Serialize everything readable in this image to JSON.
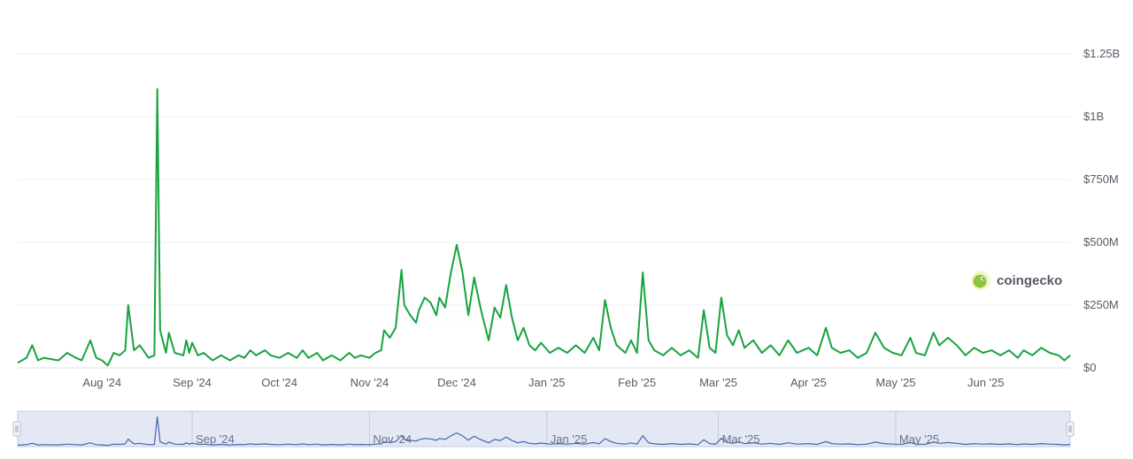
{
  "brand": {
    "name": "coingecko",
    "icon": "gecko-logo-icon"
  },
  "colors": {
    "line": "#18a33f",
    "area_top": "#d6f0dc",
    "grid": "#eeeff2",
    "navigator_fill": "#d7def0",
    "navigator_line": "#4566b0",
    "navigator_handle": "#c8cfdc",
    "axis_text": "#555b66"
  },
  "chart_data": {
    "type": "area",
    "title": "",
    "xlabel": "",
    "ylabel": "",
    "y_unit": "USD",
    "ylim": [
      0,
      1250000000
    ],
    "xlim": [
      "2024-07-03",
      "2025-06-30"
    ],
    "y_ticks": [
      {
        "value": 0,
        "label": "$0"
      },
      {
        "value": 250000000,
        "label": "$250M"
      },
      {
        "value": 500000000,
        "label": "$500M"
      },
      {
        "value": 750000000,
        "label": "$750M"
      },
      {
        "value": 1000000000,
        "label": "$1B"
      },
      {
        "value": 1250000000,
        "label": "$1.25B"
      }
    ],
    "x_ticks": [
      {
        "date": "2024-08-01",
        "label": "Aug '24"
      },
      {
        "date": "2024-09-01",
        "label": "Sep '24"
      },
      {
        "date": "2024-10-01",
        "label": "Oct '24"
      },
      {
        "date": "2024-11-01",
        "label": "Nov '24"
      },
      {
        "date": "2024-12-01",
        "label": "Dec '24"
      },
      {
        "date": "2025-01-01",
        "label": "Jan '25"
      },
      {
        "date": "2025-02-01",
        "label": "Feb '25"
      },
      {
        "date": "2025-03-01",
        "label": "Mar '25"
      },
      {
        "date": "2025-04-01",
        "label": "Apr '25"
      },
      {
        "date": "2025-05-01",
        "label": "May '25"
      },
      {
        "date": "2025-06-01",
        "label": "Jun '25"
      }
    ],
    "grid": true,
    "legend": "none",
    "series": [
      {
        "points": [
          [
            "2024-07-03",
            20000000
          ],
          [
            "2024-07-06",
            40000000
          ],
          [
            "2024-07-08",
            90000000
          ],
          [
            "2024-07-10",
            30000000
          ],
          [
            "2024-07-12",
            40000000
          ],
          [
            "2024-07-17",
            30000000
          ],
          [
            "2024-07-20",
            60000000
          ],
          [
            "2024-07-23",
            40000000
          ],
          [
            "2024-07-25",
            30000000
          ],
          [
            "2024-07-28",
            110000000
          ],
          [
            "2024-07-30",
            40000000
          ],
          [
            "2024-08-01",
            30000000
          ],
          [
            "2024-08-03",
            10000000
          ],
          [
            "2024-08-05",
            60000000
          ],
          [
            "2024-08-07",
            50000000
          ],
          [
            "2024-08-09",
            70000000
          ],
          [
            "2024-08-10",
            250000000
          ],
          [
            "2024-08-12",
            70000000
          ],
          [
            "2024-08-14",
            90000000
          ],
          [
            "2024-08-17",
            40000000
          ],
          [
            "2024-08-19",
            50000000
          ],
          [
            "2024-08-20",
            1110000000
          ],
          [
            "2024-08-21",
            150000000
          ],
          [
            "2024-08-23",
            60000000
          ],
          [
            "2024-08-24",
            140000000
          ],
          [
            "2024-08-26",
            60000000
          ],
          [
            "2024-08-29",
            50000000
          ],
          [
            "2024-08-30",
            110000000
          ],
          [
            "2024-08-31",
            60000000
          ],
          [
            "2024-09-01",
            100000000
          ],
          [
            "2024-09-03",
            50000000
          ],
          [
            "2024-09-05",
            60000000
          ],
          [
            "2024-09-08",
            30000000
          ],
          [
            "2024-09-11",
            50000000
          ],
          [
            "2024-09-14",
            30000000
          ],
          [
            "2024-09-17",
            50000000
          ],
          [
            "2024-09-19",
            40000000
          ],
          [
            "2024-09-21",
            70000000
          ],
          [
            "2024-09-23",
            50000000
          ],
          [
            "2024-09-26",
            70000000
          ],
          [
            "2024-09-28",
            50000000
          ],
          [
            "2024-10-01",
            40000000
          ],
          [
            "2024-10-04",
            60000000
          ],
          [
            "2024-10-07",
            40000000
          ],
          [
            "2024-10-09",
            70000000
          ],
          [
            "2024-10-11",
            40000000
          ],
          [
            "2024-10-14",
            60000000
          ],
          [
            "2024-10-16",
            30000000
          ],
          [
            "2024-10-19",
            50000000
          ],
          [
            "2024-10-22",
            30000000
          ],
          [
            "2024-10-25",
            60000000
          ],
          [
            "2024-10-27",
            40000000
          ],
          [
            "2024-10-29",
            50000000
          ],
          [
            "2024-11-01",
            40000000
          ],
          [
            "2024-11-03",
            60000000
          ],
          [
            "2024-11-05",
            70000000
          ],
          [
            "2024-11-06",
            150000000
          ],
          [
            "2024-11-08",
            120000000
          ],
          [
            "2024-11-10",
            160000000
          ],
          [
            "2024-11-12",
            390000000
          ],
          [
            "2024-11-13",
            250000000
          ],
          [
            "2024-11-15",
            210000000
          ],
          [
            "2024-11-17",
            180000000
          ],
          [
            "2024-11-18",
            230000000
          ],
          [
            "2024-11-20",
            280000000
          ],
          [
            "2024-11-22",
            260000000
          ],
          [
            "2024-11-24",
            210000000
          ],
          [
            "2024-11-25",
            280000000
          ],
          [
            "2024-11-27",
            240000000
          ],
          [
            "2024-11-29",
            380000000
          ],
          [
            "2024-12-01",
            490000000
          ],
          [
            "2024-12-03",
            380000000
          ],
          [
            "2024-12-05",
            210000000
          ],
          [
            "2024-12-07",
            360000000
          ],
          [
            "2024-12-09",
            250000000
          ],
          [
            "2024-12-10",
            200000000
          ],
          [
            "2024-12-12",
            110000000
          ],
          [
            "2024-12-14",
            240000000
          ],
          [
            "2024-12-16",
            200000000
          ],
          [
            "2024-12-18",
            330000000
          ],
          [
            "2024-12-20",
            200000000
          ],
          [
            "2024-12-22",
            110000000
          ],
          [
            "2024-12-24",
            160000000
          ],
          [
            "2024-12-26",
            90000000
          ],
          [
            "2024-12-28",
            70000000
          ],
          [
            "2024-12-30",
            100000000
          ],
          [
            "2025-01-02",
            60000000
          ],
          [
            "2025-01-05",
            80000000
          ],
          [
            "2025-01-08",
            60000000
          ],
          [
            "2025-01-11",
            90000000
          ],
          [
            "2025-01-14",
            60000000
          ],
          [
            "2025-01-17",
            120000000
          ],
          [
            "2025-01-19",
            70000000
          ],
          [
            "2025-01-21",
            270000000
          ],
          [
            "2025-01-23",
            160000000
          ],
          [
            "2025-01-25",
            90000000
          ],
          [
            "2025-01-28",
            60000000
          ],
          [
            "2025-01-30",
            110000000
          ],
          [
            "2025-02-01",
            60000000
          ],
          [
            "2025-02-03",
            380000000
          ],
          [
            "2025-02-05",
            110000000
          ],
          [
            "2025-02-07",
            70000000
          ],
          [
            "2025-02-10",
            50000000
          ],
          [
            "2025-02-13",
            80000000
          ],
          [
            "2025-02-16",
            50000000
          ],
          [
            "2025-02-19",
            70000000
          ],
          [
            "2025-02-22",
            40000000
          ],
          [
            "2025-02-24",
            230000000
          ],
          [
            "2025-02-26",
            80000000
          ],
          [
            "2025-02-28",
            60000000
          ],
          [
            "2025-03-02",
            280000000
          ],
          [
            "2025-03-04",
            130000000
          ],
          [
            "2025-03-06",
            90000000
          ],
          [
            "2025-03-08",
            150000000
          ],
          [
            "2025-03-10",
            80000000
          ],
          [
            "2025-03-13",
            110000000
          ],
          [
            "2025-03-16",
            60000000
          ],
          [
            "2025-03-19",
            90000000
          ],
          [
            "2025-03-22",
            50000000
          ],
          [
            "2025-03-25",
            110000000
          ],
          [
            "2025-03-28",
            60000000
          ],
          [
            "2025-04-01",
            80000000
          ],
          [
            "2025-04-04",
            50000000
          ],
          [
            "2025-04-07",
            160000000
          ],
          [
            "2025-04-09",
            80000000
          ],
          [
            "2025-04-12",
            60000000
          ],
          [
            "2025-04-15",
            70000000
          ],
          [
            "2025-04-18",
            40000000
          ],
          [
            "2025-04-21",
            60000000
          ],
          [
            "2025-04-24",
            140000000
          ],
          [
            "2025-04-27",
            80000000
          ],
          [
            "2025-04-30",
            60000000
          ],
          [
            "2025-05-03",
            50000000
          ],
          [
            "2025-05-06",
            120000000
          ],
          [
            "2025-05-08",
            60000000
          ],
          [
            "2025-05-11",
            50000000
          ],
          [
            "2025-05-14",
            140000000
          ],
          [
            "2025-05-16",
            90000000
          ],
          [
            "2025-05-19",
            120000000
          ],
          [
            "2025-05-22",
            90000000
          ],
          [
            "2025-05-25",
            50000000
          ],
          [
            "2025-05-28",
            80000000
          ],
          [
            "2025-05-31",
            60000000
          ],
          [
            "2025-06-03",
            70000000
          ],
          [
            "2025-06-06",
            50000000
          ],
          [
            "2025-06-09",
            70000000
          ],
          [
            "2025-06-12",
            40000000
          ],
          [
            "2025-06-14",
            70000000
          ],
          [
            "2025-06-17",
            50000000
          ],
          [
            "2025-06-20",
            80000000
          ],
          [
            "2025-06-23",
            60000000
          ],
          [
            "2025-06-26",
            50000000
          ],
          [
            "2025-06-28",
            30000000
          ],
          [
            "2025-06-30",
            50000000
          ]
        ]
      }
    ]
  },
  "navigator": {
    "x_ticks": [
      {
        "date": "2024-09-01",
        "label": "Sep '24"
      },
      {
        "date": "2024-11-01",
        "label": "Nov '24"
      },
      {
        "date": "2025-01-01",
        "label": "Jan '25"
      },
      {
        "date": "2025-03-01",
        "label": "Mar '25"
      },
      {
        "date": "2025-05-01",
        "label": "May '25"
      }
    ],
    "selected_range": [
      "2024-07-03",
      "2025-06-30"
    ]
  }
}
